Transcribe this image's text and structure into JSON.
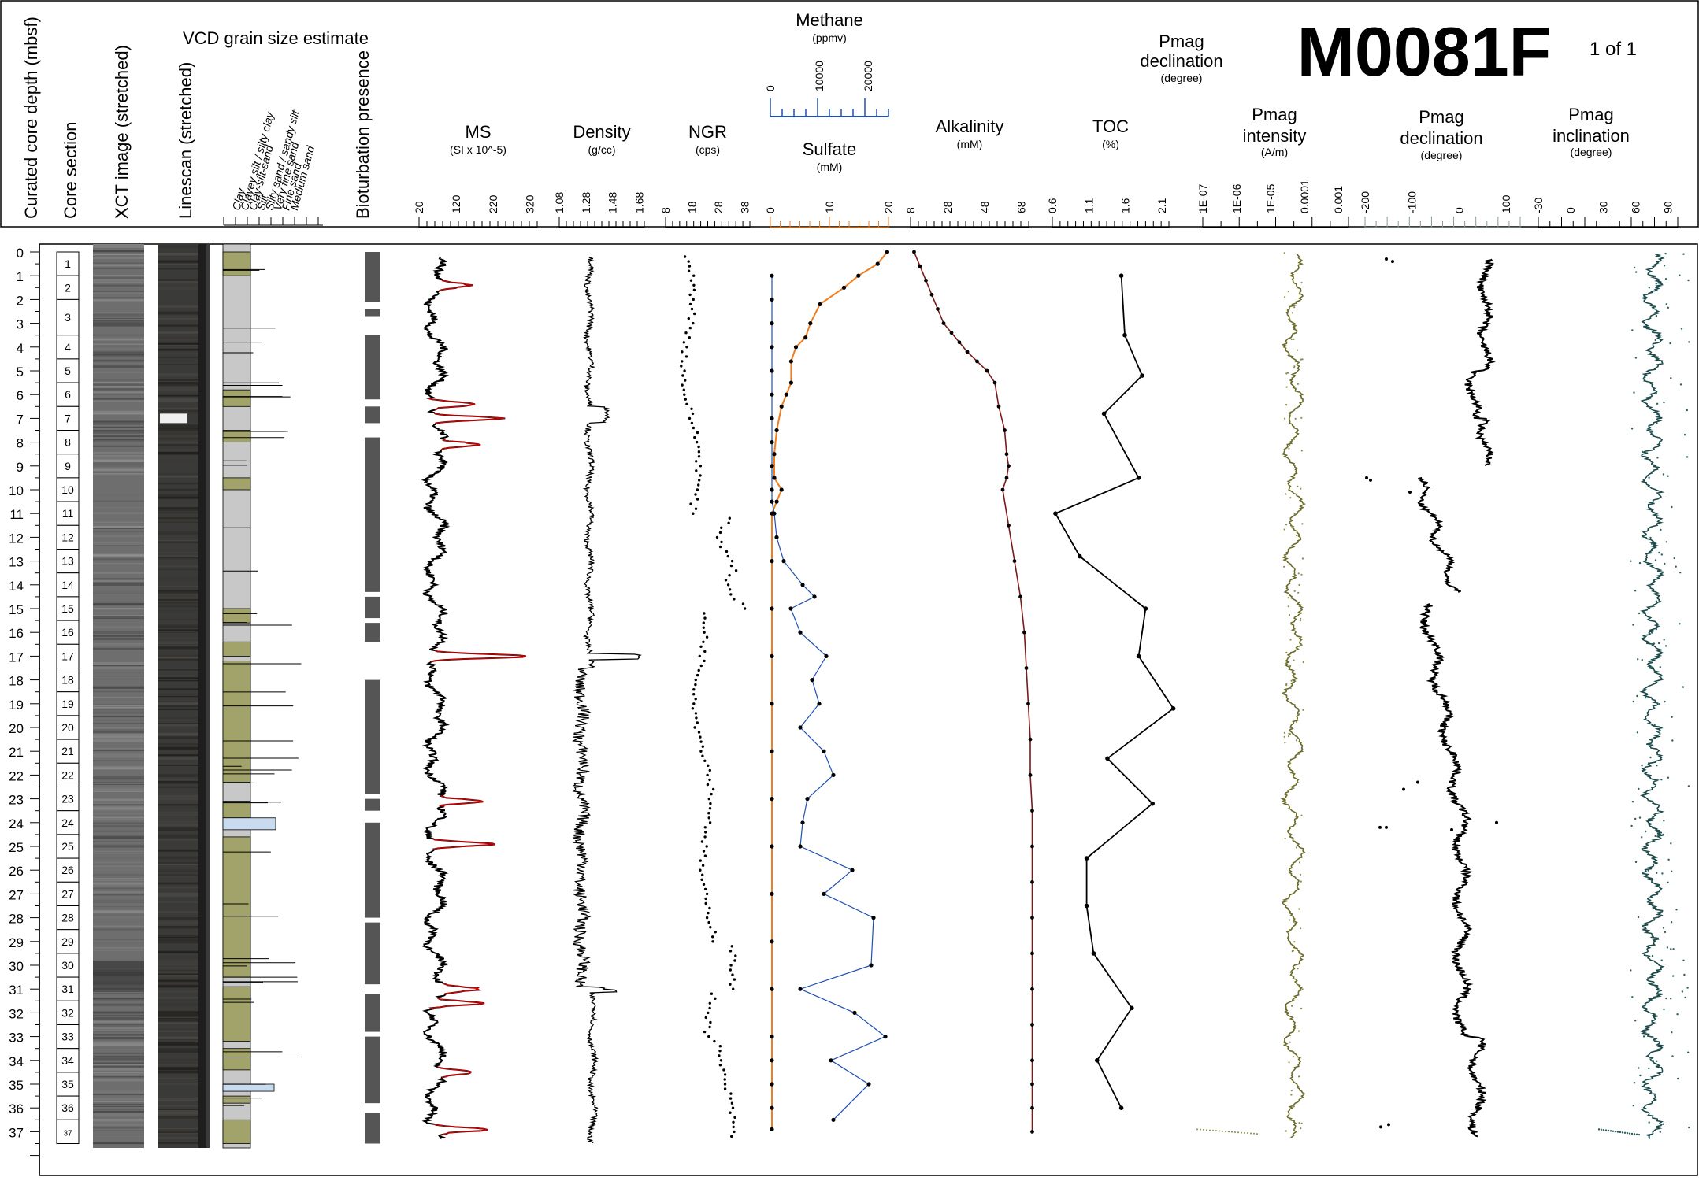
{
  "site": {
    "id": "M0081F",
    "page": "1 of 1"
  },
  "columns": {
    "depth": "Curated core depth (mbsf)",
    "section": "Core section",
    "xct": "XCT image (stretched)",
    "linescan": "Linescan (stretched)",
    "grain_title": "VCD grain size estimate",
    "grain_classes": [
      "Clay",
      "Clayey silt / silty clay",
      "Clay-silt-sand",
      "Silt",
      "Silty sand / sandy silt",
      "Very fine sand",
      "Fine sand",
      "Medium sand"
    ],
    "bioturbation": "Bioturbation presence"
  },
  "tracks": {
    "ms": {
      "title": "MS",
      "unit": "(SI x 10^-5)",
      "ticks": [
        "20",
        "120",
        "220",
        "320"
      ],
      "color": "#cc0000"
    },
    "density": {
      "title": "Density",
      "unit": "(g/cc)",
      "ticks": [
        "1.08",
        "1.28",
        "1.48",
        "1.68"
      ],
      "color": "#000000"
    },
    "ngr": {
      "title": "NGR",
      "unit": "(cps)",
      "ticks": [
        "8",
        "18",
        "28",
        "38"
      ],
      "color": "#000000"
    },
    "methane": {
      "title": "Methane",
      "unit": "(ppmv)",
      "ticks": [
        "0",
        "10000",
        "20000"
      ],
      "color": "#1f4fb4"
    },
    "sulfate": {
      "title": "Sulfate",
      "unit": "(mM)",
      "ticks": [
        "0",
        "10",
        "20"
      ],
      "color": "#f07d1e"
    },
    "alkalinity": {
      "title": "Alkalinity",
      "unit": "(mM)",
      "ticks": [
        "8",
        "28",
        "48",
        "68"
      ],
      "color": "#7a1a1a"
    },
    "toc": {
      "title": "TOC",
      "unit": "(%)",
      "ticks": [
        "0.6",
        "1.1",
        "1.6",
        "2.1"
      ],
      "color": "#000000"
    },
    "pmag_decl_top": {
      "title": "Pmag declination",
      "unit": "(degree)"
    },
    "pmag_int": {
      "title": "Pmag intensity",
      "unit": "(A/m)",
      "ticks": [
        "1E-07",
        "1E-06",
        "1E-05",
        "0.0001",
        "0.001"
      ],
      "color": "#6b6b2a"
    },
    "pmag_decl": {
      "title": "Pmag declination",
      "unit": "(degree)",
      "ticks": [
        "-200",
        "-100",
        "0",
        "100"
      ],
      "color": "#000000"
    },
    "pmag_inc": {
      "title": "Pmag inclination",
      "unit": "(degree)",
      "ticks": [
        "-30",
        "0",
        "30",
        "60",
        "90"
      ],
      "color": "#1d4a4a"
    }
  },
  "chart_data": {
    "type": "line",
    "depth_range_mbsf": [
      0,
      38
    ],
    "depth_ticks": [
      "0",
      "1",
      "2",
      "3",
      "4",
      "5",
      "6",
      "7",
      "8",
      "9",
      "10",
      "11",
      "12",
      "13",
      "14",
      "15",
      "16",
      "17",
      "18",
      "19",
      "20",
      "21",
      "22",
      "23",
      "24",
      "25",
      "26",
      "27",
      "28",
      "29",
      "30",
      "31",
      "32",
      "33",
      "34",
      "35",
      "36",
      "37"
    ],
    "core_sections": [
      "1",
      "2",
      "3",
      "4",
      "5",
      "6",
      "7",
      "8",
      "9",
      "10",
      "11",
      "12",
      "13",
      "14",
      "15",
      "16",
      "17",
      "18",
      "19",
      "20",
      "21",
      "22",
      "23",
      "24",
      "25",
      "26",
      "27",
      "28",
      "29",
      "30",
      "31",
      "32",
      "33",
      "34",
      "35",
      "36",
      "37"
    ],
    "section_depths": [
      [
        0,
        1
      ],
      [
        1,
        2
      ],
      [
        2,
        3.5
      ],
      [
        3.5,
        4.5
      ],
      [
        4.5,
        5.5
      ],
      [
        5.5,
        6.5
      ],
      [
        6.5,
        7.5
      ],
      [
        7.5,
        8.5
      ],
      [
        8.5,
        9.5
      ],
      [
        9.5,
        10.5
      ],
      [
        10.5,
        11.5
      ],
      [
        11.5,
        12.5
      ],
      [
        12.5,
        13.5
      ],
      [
        13.5,
        14.5
      ],
      [
        14.5,
        15.5
      ],
      [
        15.5,
        16.5
      ],
      [
        16.5,
        17.5
      ],
      [
        17.5,
        18.5
      ],
      [
        18.5,
        19.5
      ],
      [
        19.5,
        20.5
      ],
      [
        20.5,
        21.5
      ],
      [
        21.5,
        22.5
      ],
      [
        22.5,
        23.5
      ],
      [
        23.5,
        24.5
      ],
      [
        24.5,
        25.5
      ],
      [
        25.5,
        26.5
      ],
      [
        26.5,
        27.5
      ],
      [
        27.5,
        28.5
      ],
      [
        28.5,
        29.5
      ],
      [
        29.5,
        30.5
      ],
      [
        30.5,
        31.5
      ],
      [
        31.5,
        32.5
      ],
      [
        32.5,
        33.5
      ],
      [
        33.5,
        34.5
      ],
      [
        34.5,
        35.5
      ],
      [
        35.5,
        36.5
      ],
      [
        36.5,
        37.5
      ]
    ],
    "series": [
      {
        "name": "Sulfate",
        "x": [
          24,
          22,
          18,
          15,
          10,
          8,
          7,
          5,
          4,
          4,
          3,
          2,
          1,
          0.5,
          0.5,
          2,
          1,
          0,
          0,
          0,
          0,
          0,
          0,
          0,
          0,
          0,
          0,
          0,
          0,
          0,
          0,
          0,
          0
        ],
        "depth": [
          0,
          0.5,
          1,
          1.5,
          2.2,
          3,
          3.6,
          4,
          4.6,
          5.5,
          6,
          6.5,
          7.5,
          8.5,
          9.5,
          10,
          10.5,
          11,
          13,
          15,
          17,
          19,
          21,
          23,
          25,
          27,
          29,
          31,
          33,
          34,
          35,
          36,
          36.9
        ]
      },
      {
        "name": "Methane",
        "x": [
          0,
          0,
          0,
          0,
          0,
          0,
          0,
          0,
          0,
          0,
          0,
          500,
          1000,
          2500,
          6500,
          9000,
          4000,
          6000,
          11500,
          8500,
          10000,
          6000,
          11000,
          13000,
          7500,
          6500,
          6000,
          17000,
          11000,
          21500,
          21000,
          6000,
          17500,
          24000,
          12500,
          20500,
          13000
        ],
        "depth": [
          1,
          2,
          3,
          4,
          5,
          6,
          7,
          8,
          9,
          10,
          10.5,
          11,
          12,
          13,
          14,
          14.5,
          15,
          16,
          17,
          18,
          19,
          20,
          21,
          22,
          23,
          24,
          25,
          26,
          27,
          28,
          30,
          31,
          32,
          33,
          34,
          35,
          36.5
        ]
      },
      {
        "name": "Alkalinity",
        "x": [
          9,
          12,
          15,
          18,
          21,
          24,
          28,
          32,
          36,
          41,
          46,
          50,
          52,
          55,
          56,
          57,
          56,
          54,
          57,
          60,
          63,
          65,
          66,
          67,
          68,
          68,
          69,
          69,
          69,
          69,
          69,
          69,
          69,
          69,
          69,
          69,
          69
        ],
        "depth": [
          0,
          0.6,
          1.2,
          1.8,
          2.4,
          3.0,
          3.4,
          3.8,
          4.2,
          4.6,
          5.0,
          5.5,
          6.5,
          7.5,
          8.5,
          9.0,
          9.5,
          10,
          11.5,
          13,
          14.5,
          16,
          17.5,
          19,
          20.5,
          22,
          23.5,
          25,
          26.5,
          28,
          29.5,
          31,
          32.5,
          34,
          35,
          36,
          37
        ]
      },
      {
        "name": "TOC",
        "x": [
          1.55,
          1.6,
          1.85,
          1.3,
          1.8,
          0.6,
          0.95,
          1.9,
          1.8,
          2.3,
          1.35,
          2.0,
          1.05,
          1.05,
          1.15,
          1.7,
          1.2,
          1.55
        ],
        "depth": [
          1,
          3.5,
          5.2,
          6.8,
          9.5,
          11,
          12.8,
          15,
          17,
          19.2,
          21.3,
          23.2,
          25.5,
          27.5,
          29.5,
          31.8,
          34,
          36
        ]
      }
    ]
  }
}
